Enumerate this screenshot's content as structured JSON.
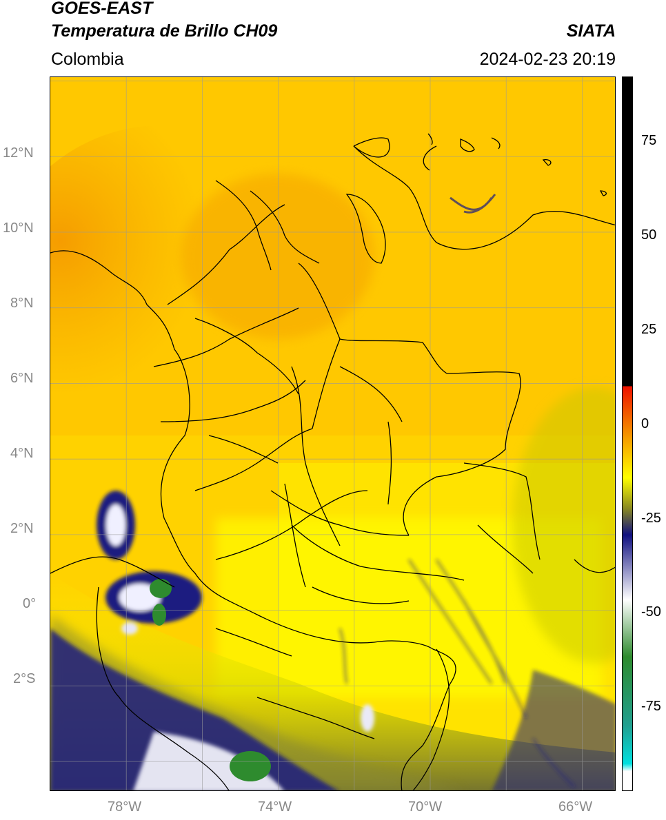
{
  "header": {
    "line1": "GOES-EAST",
    "line2": "Temperatura de Brillo CH09",
    "region": "Colombia",
    "org": "SIATA",
    "timestamp": "2024-02-23 20:19"
  },
  "map": {
    "lon_range": [
      -80,
      -65.1
    ],
    "lat_range": [
      -4.8,
      14.1
    ],
    "lon_ticks": [
      "78°W",
      "74°W",
      "70°W",
      "66°W"
    ],
    "lat_ticks": [
      "12°N",
      "10°N",
      "8°N",
      "6°N",
      "4°N",
      "2°N",
      "0°",
      "2°S"
    ],
    "lon_tick_values": [
      -78,
      -74,
      -70,
      -66
    ],
    "lat_tick_values": [
      12,
      10,
      8,
      6,
      4,
      2,
      0,
      -2
    ],
    "gridlines": true
  },
  "colorbar": {
    "ticks": [
      "75",
      "50",
      "25",
      "0",
      "-25",
      "-50",
      "-75"
    ],
    "tick_values": [
      75,
      50,
      25,
      0,
      -25,
      -50,
      -75
    ],
    "range": [
      -97,
      90
    ],
    "colors": {
      "black": "#000000",
      "red": "#ee1100",
      "orange": "#f6a000",
      "yellow": "#ffff00",
      "olive": "#8a8a20",
      "navy": "#101080",
      "white": "#ffffff",
      "green": "#2e8b2e",
      "teal": "#20a090",
      "cyan": "#00e0e0"
    }
  }
}
